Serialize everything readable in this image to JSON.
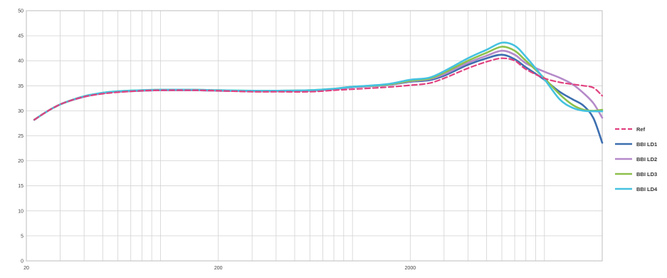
{
  "chart_data": {
    "type": "line",
    "title": "",
    "xlabel": "",
    "ylabel": "",
    "x_scale": "log",
    "xlim": [
      20,
      20000
    ],
    "ylim": [
      0,
      50
    ],
    "grid": true,
    "legend_position": "right",
    "x_tick_labels": [
      {
        "value": 20,
        "label": "20"
      },
      {
        "value": 200,
        "label": "200"
      },
      {
        "value": 2000,
        "label": "2000"
      }
    ],
    "y_tick_labels": [
      {
        "value": 0,
        "label": "0"
      },
      {
        "value": 5,
        "label": "5"
      },
      {
        "value": 10,
        "label": "10"
      },
      {
        "value": 15,
        "label": "15"
      },
      {
        "value": 20,
        "label": "20"
      },
      {
        "value": 25,
        "label": "25"
      },
      {
        "value": 30,
        "label": "30"
      },
      {
        "value": 35,
        "label": "35"
      },
      {
        "value": 40,
        "label": "40"
      },
      {
        "value": 45,
        "label": "45"
      },
      {
        "value": 50,
        "label": "50"
      }
    ],
    "series": [
      {
        "name": "Ref",
        "color": "#e0417f",
        "dashed": true,
        "points": [
          [
            22,
            28.2
          ],
          [
            25,
            29.6
          ],
          [
            28,
            30.7
          ],
          [
            32,
            31.7
          ],
          [
            40,
            32.8
          ],
          [
            50,
            33.4
          ],
          [
            60,
            33.7
          ],
          [
            80,
            34.0
          ],
          [
            100,
            34.1
          ],
          [
            150,
            34.1
          ],
          [
            200,
            34.0
          ],
          [
            300,
            33.8
          ],
          [
            400,
            33.8
          ],
          [
            600,
            33.8
          ],
          [
            800,
            34.1
          ],
          [
            1000,
            34.3
          ],
          [
            1500,
            34.7
          ],
          [
            2000,
            35.1
          ],
          [
            2500,
            35.5
          ],
          [
            3000,
            36.5
          ],
          [
            4000,
            38.5
          ],
          [
            5000,
            39.8
          ],
          [
            6000,
            40.5
          ],
          [
            7000,
            40.0
          ],
          [
            8000,
            38.3
          ],
          [
            10000,
            36.5
          ],
          [
            12000,
            35.7
          ],
          [
            14000,
            35.3
          ],
          [
            16000,
            35.0
          ],
          [
            18000,
            34.6
          ],
          [
            20000,
            33.0
          ]
        ]
      },
      {
        "name": "BBI LD1",
        "color": "#3d6fb0",
        "dashed": false,
        "points": [
          [
            22,
            28.2
          ],
          [
            25,
            29.6
          ],
          [
            28,
            30.7
          ],
          [
            32,
            31.7
          ],
          [
            40,
            32.8
          ],
          [
            50,
            33.5
          ],
          [
            60,
            33.8
          ],
          [
            80,
            34.0
          ],
          [
            100,
            34.1
          ],
          [
            150,
            34.1
          ],
          [
            200,
            34.0
          ],
          [
            300,
            33.9
          ],
          [
            400,
            33.9
          ],
          [
            600,
            34.0
          ],
          [
            800,
            34.3
          ],
          [
            1000,
            34.7
          ],
          [
            1500,
            35.1
          ],
          [
            2000,
            35.8
          ],
          [
            2500,
            36.1
          ],
          [
            3000,
            37.0
          ],
          [
            4000,
            39.2
          ],
          [
            5000,
            40.5
          ],
          [
            6000,
            41.2
          ],
          [
            7000,
            40.3
          ],
          [
            8000,
            38.7
          ],
          [
            10000,
            36.2
          ],
          [
            12000,
            33.8
          ],
          [
            14000,
            32.3
          ],
          [
            16000,
            31.0
          ],
          [
            18000,
            28.5
          ],
          [
            20000,
            23.6
          ]
        ]
      },
      {
        "name": "BBI LD2",
        "color": "#b58ac9",
        "dashed": false,
        "points": [
          [
            22,
            28.2
          ],
          [
            25,
            29.6
          ],
          [
            28,
            30.7
          ],
          [
            32,
            31.7
          ],
          [
            40,
            32.8
          ],
          [
            50,
            33.5
          ],
          [
            60,
            33.8
          ],
          [
            80,
            34.0
          ],
          [
            100,
            34.1
          ],
          [
            150,
            34.1
          ],
          [
            200,
            34.0
          ],
          [
            300,
            33.9
          ],
          [
            400,
            33.9
          ],
          [
            600,
            34.0
          ],
          [
            800,
            34.3
          ],
          [
            1000,
            34.7
          ],
          [
            1500,
            35.1
          ],
          [
            2000,
            35.9
          ],
          [
            2500,
            36.3
          ],
          [
            3000,
            37.3
          ],
          [
            4000,
            39.6
          ],
          [
            5000,
            41.0
          ],
          [
            6000,
            42.0
          ],
          [
            7000,
            41.2
          ],
          [
            8000,
            39.5
          ],
          [
            10000,
            37.8
          ],
          [
            12000,
            36.6
          ],
          [
            14000,
            35.3
          ],
          [
            16000,
            33.5
          ],
          [
            18000,
            31.5
          ],
          [
            20000,
            28.6
          ]
        ]
      },
      {
        "name": "BBI LD3",
        "color": "#8dc14c",
        "dashed": false,
        "points": [
          [
            22,
            28.2
          ],
          [
            25,
            29.6
          ],
          [
            28,
            30.7
          ],
          [
            32,
            31.7
          ],
          [
            40,
            32.9
          ],
          [
            50,
            33.6
          ],
          [
            60,
            33.9
          ],
          [
            80,
            34.1
          ],
          [
            100,
            34.2
          ],
          [
            150,
            34.2
          ],
          [
            200,
            34.1
          ],
          [
            300,
            34.0
          ],
          [
            400,
            34.0
          ],
          [
            600,
            34.1
          ],
          [
            800,
            34.4
          ],
          [
            1000,
            34.8
          ],
          [
            1500,
            35.2
          ],
          [
            2000,
            36.0
          ],
          [
            2500,
            36.4
          ],
          [
            3000,
            37.6
          ],
          [
            4000,
            40.0
          ],
          [
            5000,
            41.6
          ],
          [
            6000,
            42.8
          ],
          [
            7000,
            42.0
          ],
          [
            8000,
            40.0
          ],
          [
            10000,
            36.5
          ],
          [
            12000,
            33.3
          ],
          [
            14000,
            31.2
          ],
          [
            16000,
            30.2
          ],
          [
            18000,
            30.0
          ],
          [
            20000,
            30.2
          ]
        ]
      },
      {
        "name": "BBI LD4",
        "color": "#45c2e0",
        "dashed": false,
        "points": [
          [
            22,
            28.2
          ],
          [
            25,
            29.6
          ],
          [
            28,
            30.7
          ],
          [
            32,
            31.7
          ],
          [
            40,
            32.9
          ],
          [
            50,
            33.6
          ],
          [
            60,
            33.9
          ],
          [
            80,
            34.1
          ],
          [
            100,
            34.2
          ],
          [
            150,
            34.2
          ],
          [
            200,
            34.1
          ],
          [
            300,
            34.0
          ],
          [
            400,
            34.0
          ],
          [
            600,
            34.1
          ],
          [
            800,
            34.4
          ],
          [
            1000,
            34.8
          ],
          [
            1500,
            35.3
          ],
          [
            2000,
            36.2
          ],
          [
            2500,
            36.6
          ],
          [
            3000,
            37.9
          ],
          [
            4000,
            40.5
          ],
          [
            5000,
            42.2
          ],
          [
            6000,
            43.6
          ],
          [
            7000,
            43.0
          ],
          [
            8000,
            40.8
          ],
          [
            10000,
            36.3
          ],
          [
            12000,
            32.3
          ],
          [
            14000,
            30.6
          ],
          [
            16000,
            30.0
          ],
          [
            18000,
            29.9
          ],
          [
            20000,
            29.9
          ]
        ]
      }
    ]
  }
}
